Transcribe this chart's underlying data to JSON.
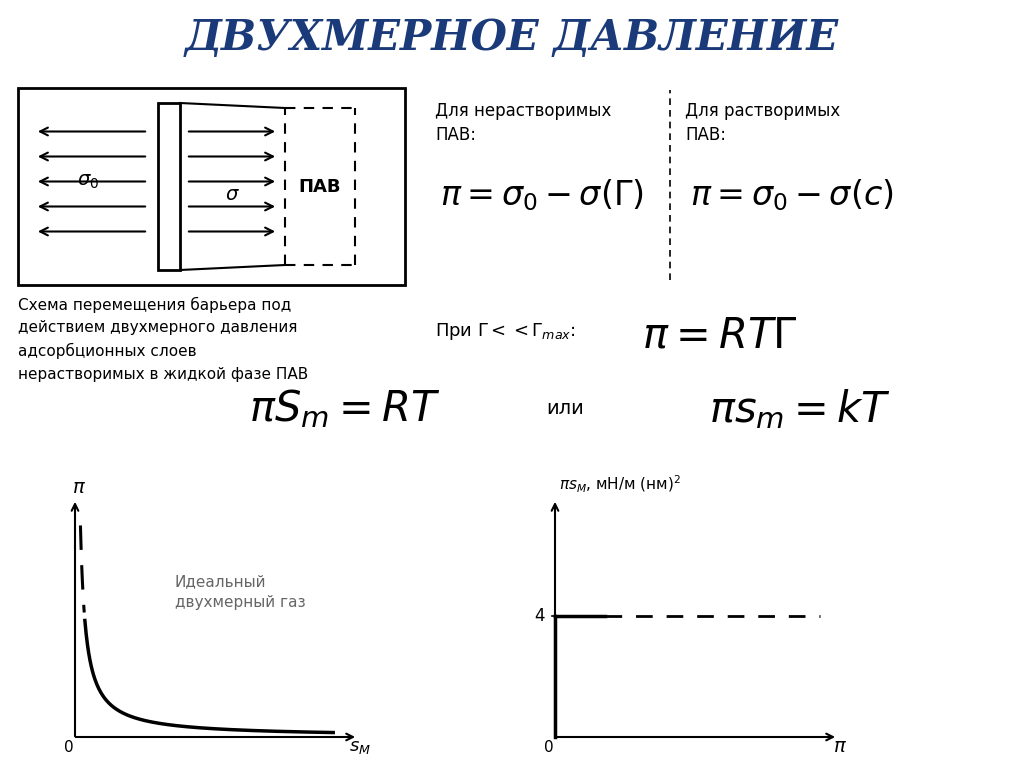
{
  "title": "ДВУХМЕРНОЕ ДАВЛЕНИЕ",
  "title_color": "#1a3a7a",
  "title_fontsize": 30,
  "bg_color": "#ffffff",
  "text_color": "#000000",
  "label_left": "Для нерастворимых\nПАВ:",
  "label_right": "Для растворимых\nПАВ:",
  "formula2_cond": "При Г << Г",
  "formula2_cond_sub": "max",
  "graph1_annotation": "Идеальный\nдвухмерный газ",
  "graph2_ylabel": "πsᴹ, мН/м (нм)",
  "graph2_ytick": "4"
}
